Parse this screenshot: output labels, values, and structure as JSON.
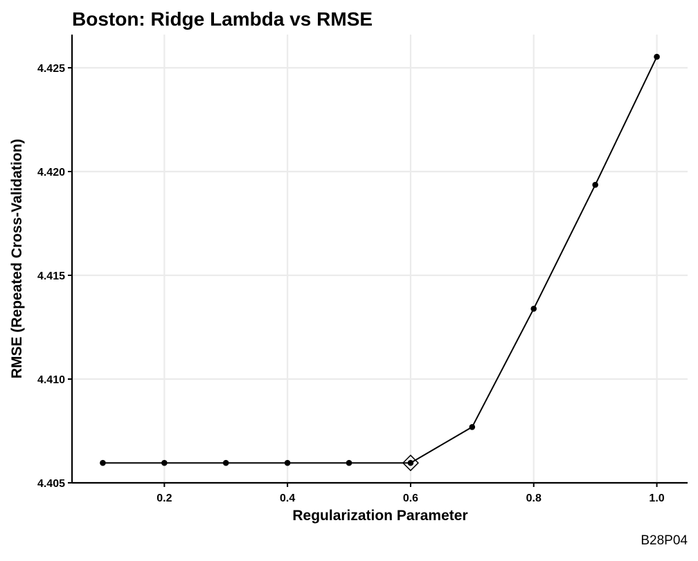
{
  "chart_data": {
    "type": "line",
    "title": "Boston: Ridge Lambda vs RMSE",
    "xlabel": "Regularization Parameter",
    "ylabel": "RMSE (Repeated Cross-Validation)",
    "caption": "B28P04",
    "x": [
      0.1,
      0.2,
      0.3,
      0.4,
      0.5,
      0.6,
      0.7,
      0.8,
      0.9,
      1.0
    ],
    "y": [
      4.40596,
      4.40596,
      4.40596,
      4.40596,
      4.40596,
      4.40596,
      4.40769,
      4.41339,
      4.41936,
      4.42553
    ],
    "best_x": 0.6,
    "best_y": 4.40596,
    "xlim": [
      0.05,
      1.05
    ],
    "ylim": [
      4.405,
      4.4266
    ],
    "x_ticks": [
      0.2,
      0.4,
      0.6,
      0.8,
      1.0
    ],
    "x_tick_labels": [
      "0.2",
      "0.4",
      "0.6",
      "0.8",
      "1.0"
    ],
    "y_ticks": [
      4.405,
      4.41,
      4.415,
      4.42,
      4.425
    ],
    "y_tick_labels": [
      "4.405",
      "4.410",
      "4.415",
      "4.420",
      "4.425"
    ],
    "grid": true,
    "colors": {
      "line": "#000000",
      "grid": "#ebebeb"
    }
  }
}
